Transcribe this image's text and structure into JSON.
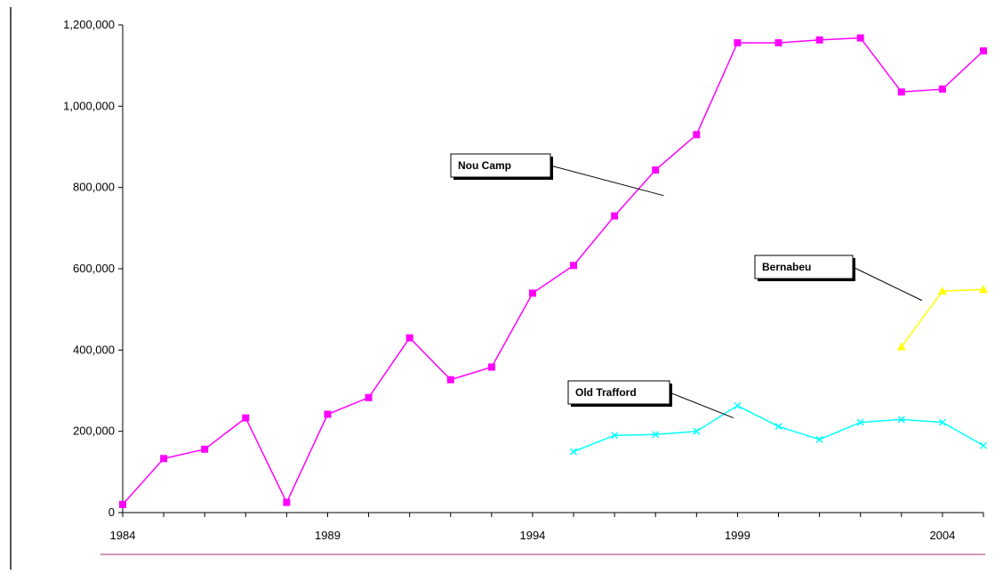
{
  "chart_data": {
    "type": "line",
    "title": "",
    "xlabel": "",
    "ylabel": "",
    "xlim": [
      1984,
      2005
    ],
    "ylim": [
      0,
      1200000
    ],
    "x_ticks": [
      1984,
      1989,
      1994,
      1999,
      2004
    ],
    "y_ticks": [
      0,
      200000,
      400000,
      600000,
      800000,
      1000000,
      1200000
    ],
    "x_tick_labels": [
      "1984",
      "1989",
      "1994",
      "1999",
      "2004"
    ],
    "y_tick_labels": [
      "0",
      "200,000",
      "400,000",
      "600,000",
      "800,000",
      "1,000,000",
      "1,200,000"
    ],
    "grid": false,
    "legend": "none",
    "series": [
      {
        "name": "Nou Camp",
        "color": "#ff00ff",
        "marker": "square",
        "points": [
          [
            1984,
            20000
          ],
          [
            1985,
            133000
          ],
          [
            1986,
            156000
          ],
          [
            1987,
            233000
          ],
          [
            1988,
            25000
          ],
          [
            1989,
            242000
          ],
          [
            1990,
            283000
          ],
          [
            1991,
            430000
          ],
          [
            1992,
            327000
          ],
          [
            1993,
            358000
          ],
          [
            1994,
            540000
          ],
          [
            1995,
            608000
          ],
          [
            1996,
            730000
          ],
          [
            1997,
            843000
          ],
          [
            1998,
            930000
          ],
          [
            1999,
            1156000
          ],
          [
            2000,
            1156000
          ],
          [
            2001,
            1163000
          ],
          [
            2002,
            1168000
          ],
          [
            2003,
            1035000
          ],
          [
            2004,
            1042000
          ],
          [
            2005,
            1136000
          ]
        ]
      },
      {
        "name": "Bernabeu",
        "color": "#ffff00",
        "marker": "triangle",
        "points": [
          [
            2003,
            408000
          ],
          [
            2004,
            545000
          ],
          [
            2005,
            549000
          ]
        ]
      },
      {
        "name": "Old Trafford",
        "color": "#00ffff",
        "marker": "x",
        "points": [
          [
            1995,
            150000
          ],
          [
            1996,
            190000
          ],
          [
            1997,
            192000
          ],
          [
            1998,
            200000
          ],
          [
            1999,
            263000
          ],
          [
            2000,
            212000
          ],
          [
            2001,
            180000
          ],
          [
            2002,
            222000
          ],
          [
            2003,
            229000
          ],
          [
            2004,
            222000
          ],
          [
            2005,
            165000
          ]
        ]
      }
    ],
    "annotations": [
      {
        "text": "Nou Camp",
        "series": "Nou Camp",
        "target": [
          1997.2,
          780000
        ]
      },
      {
        "text": "Bernabeu",
        "series": "Bernabeu",
        "target": [
          2003.5,
          522000
        ]
      },
      {
        "text": "Old Trafford",
        "series": "Old Trafford",
        "target": [
          1998.9,
          233000
        ]
      }
    ]
  }
}
